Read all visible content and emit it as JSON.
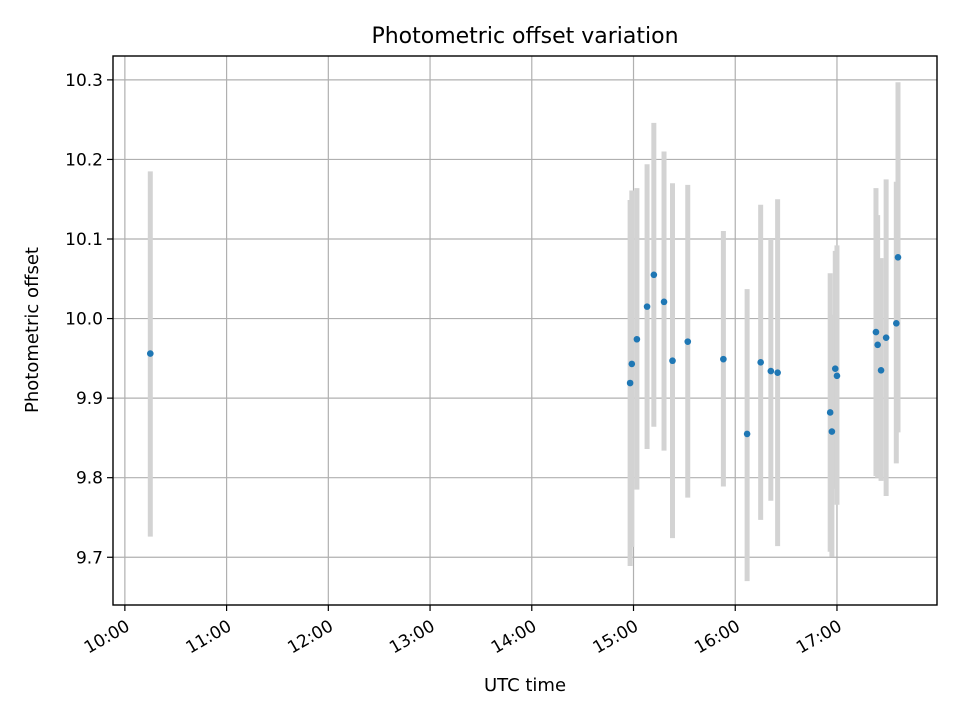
{
  "chart_data": {
    "type": "scatter",
    "title": "Photometric offset variation",
    "xlabel": "UTC time",
    "ylabel": "Photometric offset",
    "xlim": [
      "09:53",
      "17:59"
    ],
    "ylim": [
      9.64,
      10.33
    ],
    "xticks": [
      "10:00",
      "11:00",
      "12:00",
      "13:00",
      "14:00",
      "15:00",
      "16:00",
      "17:00"
    ],
    "yticks": [
      9.7,
      9.8,
      9.9,
      10.0,
      10.1,
      10.2,
      10.3
    ],
    "grid": true,
    "marker_color": "#1f77b4",
    "errorbar_color": "#d3d3d3",
    "points": [
      {
        "t": "10:15",
        "y": 9.956,
        "lo": 9.726,
        "hi": 10.185
      },
      {
        "t": "14:58",
        "y": 9.919,
        "lo": 9.689,
        "hi": 10.149
      },
      {
        "t": "14:59",
        "y": 9.943,
        "lo": 9.713,
        "hi": 10.161
      },
      {
        "t": "15:02",
        "y": 9.974,
        "lo": 9.785,
        "hi": 10.164
      },
      {
        "t": "15:08",
        "y": 10.015,
        "lo": 9.836,
        "hi": 10.194
      },
      {
        "t": "15:12",
        "y": 10.055,
        "lo": 9.864,
        "hi": 10.246
      },
      {
        "t": "15:18",
        "y": 10.021,
        "lo": 9.834,
        "hi": 10.21
      },
      {
        "t": "15:23",
        "y": 9.947,
        "lo": 9.724,
        "hi": 10.17
      },
      {
        "t": "15:32",
        "y": 9.971,
        "lo": 9.775,
        "hi": 10.168
      },
      {
        "t": "15:53",
        "y": 9.949,
        "lo": 9.789,
        "hi": 10.11
      },
      {
        "t": "16:07",
        "y": 9.855,
        "lo": 9.67,
        "hi": 10.037
      },
      {
        "t": "16:15",
        "y": 9.945,
        "lo": 9.747,
        "hi": 10.143
      },
      {
        "t": "16:21",
        "y": 9.934,
        "lo": 9.771,
        "hi": 10.1
      },
      {
        "t": "16:25",
        "y": 9.932,
        "lo": 9.714,
        "hi": 10.15
      },
      {
        "t": "16:56",
        "y": 9.882,
        "lo": 9.707,
        "hi": 10.057
      },
      {
        "t": "16:57",
        "y": 9.858,
        "lo": 9.701,
        "hi": 10.005
      },
      {
        "t": "16:59",
        "y": 9.937,
        "lo": 9.786,
        "hi": 10.085
      },
      {
        "t": "17:00",
        "y": 9.928,
        "lo": 9.766,
        "hi": 10.092
      },
      {
        "t": "17:23",
        "y": 9.983,
        "lo": 9.802,
        "hi": 10.164
      },
      {
        "t": "17:24",
        "y": 9.967,
        "lo": 9.8,
        "hi": 10.13
      },
      {
        "t": "17:26",
        "y": 9.935,
        "lo": 9.796,
        "hi": 10.076
      },
      {
        "t": "17:29",
        "y": 9.976,
        "lo": 9.777,
        "hi": 10.175
      },
      {
        "t": "17:35",
        "y": 9.994,
        "lo": 9.818,
        "hi": 10.172
      },
      {
        "t": "17:36",
        "y": 10.077,
        "lo": 9.857,
        "hi": 10.297
      }
    ]
  }
}
